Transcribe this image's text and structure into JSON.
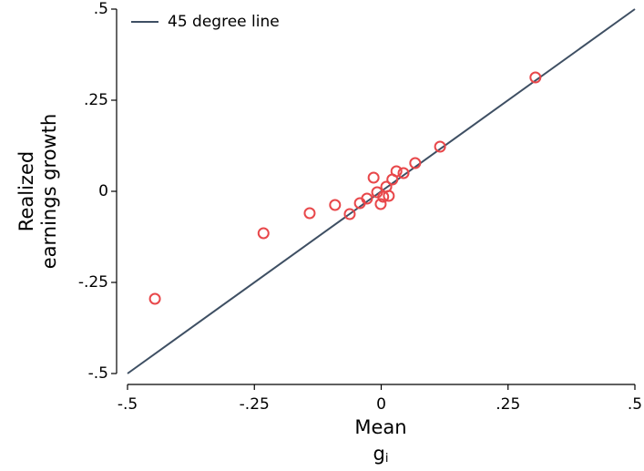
{
  "chart_data": {
    "type": "scatter",
    "ylabel": [
      "Realized",
      "earnings growth"
    ],
    "xlabel": "Mean",
    "xlabel_symbol": "g",
    "xlabel_subscript": "i",
    "xlim": [
      -0.5,
      0.5
    ],
    "ylim": [
      -0.5,
      0.5
    ],
    "xticks": [
      {
        "value": -0.5,
        "label": "-.5"
      },
      {
        "value": -0.25,
        "label": "-.25"
      },
      0,
      {
        "value": 0.25,
        "label": ".25"
      },
      {
        "value": 0.5,
        "label": ".5"
      }
    ],
    "yticks": [
      {
        "value": -0.5,
        "label": "-.5"
      },
      {
        "value": -0.25,
        "label": "-.25"
      },
      0,
      {
        "value": 0.25,
        "label": ".25"
      },
      {
        "value": 0.5,
        "label": ".5"
      }
    ],
    "legend": "top-left",
    "series": [
      {
        "name": "45 degree line",
        "type": "line",
        "color": "#3e4f63",
        "x": [
          -0.5,
          0.5
        ],
        "values": [
          -0.5,
          0.5
        ]
      },
      {
        "type": "scatter",
        "color": "#e8474a",
        "x": [
          -0.446,
          -0.232,
          -0.141,
          -0.091,
          -0.062,
          -0.042,
          -0.028,
          -0.015,
          -0.008,
          -0.001,
          0.004,
          0.01,
          0.015,
          0.022,
          0.03,
          0.044,
          0.067,
          0.116,
          0.304
        ],
        "values": [
          -0.295,
          -0.115,
          -0.06,
          -0.0375,
          -0.0625,
          -0.0325,
          -0.02,
          0.0375,
          -0.0025,
          -0.035,
          -0.015,
          0.0125,
          -0.0125,
          0.0325,
          0.055,
          0.05,
          0.0775,
          0.1225,
          0.3125
        ]
      }
    ]
  }
}
